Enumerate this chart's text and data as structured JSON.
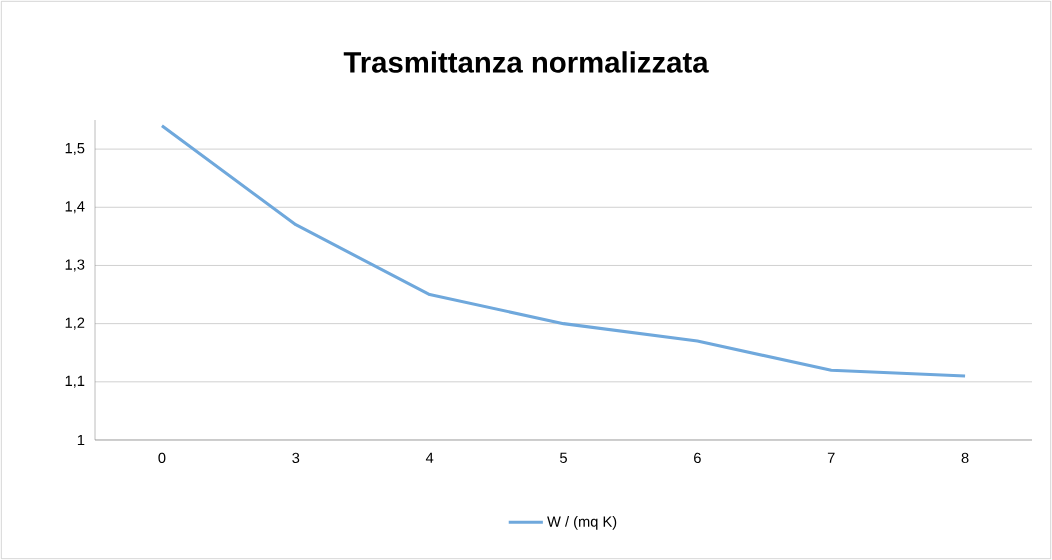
{
  "chart_data": {
    "type": "line",
    "title": "Trasmittanza normalizzata",
    "categories": [
      "0",
      "3",
      "4",
      "5",
      "6",
      "7",
      "8"
    ],
    "series": [
      {
        "name": "W / (mq K)",
        "color": "#6fa8dc",
        "values": [
          1.54,
          1.37,
          1.25,
          1.2,
          1.17,
          1.12,
          1.11
        ]
      }
    ],
    "ylim": [
      1,
      1.55
    ],
    "yticks": [
      {
        "value": 1,
        "label": "1"
      },
      {
        "value": 1.1,
        "label": "1,1"
      },
      {
        "value": 1.2,
        "label": "1,2"
      },
      {
        "value": 1.3,
        "label": "1,3"
      },
      {
        "value": 1.4,
        "label": "1,4"
      },
      {
        "value": 1.5,
        "label": "1,5"
      }
    ],
    "grid": "y",
    "legend": "bottom",
    "marker": "none",
    "line_style": "solid"
  }
}
